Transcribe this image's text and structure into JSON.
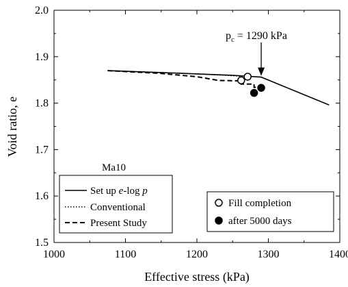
{
  "chart_data": {
    "type": "line",
    "xlabel": "Effective stress (kPa)",
    "ylabel": "Void ratio, e",
    "xlim": [
      1000,
      1400
    ],
    "ylim": [
      1.5,
      2.0
    ],
    "xticks": [
      "1000",
      "1100",
      "1200",
      "1300",
      "1400"
    ],
    "yticks": [
      "1.5",
      "1.6",
      "1.7",
      "1.8",
      "1.9",
      "2.0"
    ],
    "xtick_values": [
      1000,
      1100,
      1200,
      1300,
      1400
    ],
    "ytick_values": [
      1.5,
      1.6,
      1.7,
      1.8,
      1.9,
      2.0
    ],
    "series": [
      {
        "name": "Set up e-log p",
        "style": "solid",
        "x": [
          1075,
          1150,
          1200,
          1250,
          1290,
          1385
        ],
        "y": [
          1.87,
          1.866,
          1.863,
          1.86,
          1.856,
          1.796
        ]
      },
      {
        "name": "Conventional",
        "style": "dotted",
        "x": [
          1075,
          1150,
          1200,
          1250,
          1270
        ],
        "y": [
          1.87,
          1.866,
          1.863,
          1.859,
          1.857
        ]
      },
      {
        "name": "Present Study",
        "style": "dashed",
        "x": [
          1075,
          1150,
          1200,
          1230,
          1262,
          1262,
          1280,
          1280,
          1290
        ],
        "y": [
          1.87,
          1.864,
          1.857,
          1.849,
          1.848,
          1.841,
          1.841,
          1.834,
          1.834
        ]
      }
    ],
    "markers": [
      {
        "group": "fill",
        "filled": false,
        "x": 1262,
        "y": 1.849
      },
      {
        "group": "fill",
        "filled": false,
        "x": 1271,
        "y": 1.857
      },
      {
        "group": "after",
        "filled": true,
        "x": 1280,
        "y": 1.822
      },
      {
        "group": "after",
        "filled": true,
        "x": 1290,
        "y": 1.833
      }
    ],
    "annotation": {
      "x": 1290,
      "y": 1.856,
      "label_main": "p",
      "label_sub": "c",
      "label_rest": " = 1290 kPa"
    },
    "inset_label": "Ma10",
    "legend_lines": {
      "placement": "bottom-left",
      "items": [
        {
          "label_parts": [
            "Set up ",
            "e",
            "-log ",
            "p"
          ],
          "style": "solid"
        },
        {
          "label": "Conventional",
          "style": "dotted"
        },
        {
          "label": "Present Study",
          "style": "dashed"
        }
      ]
    },
    "legend_markers": {
      "placement": "bottom-right",
      "items": [
        {
          "label": "Fill completion",
          "filled": false
        },
        {
          "label": "after 5000 days",
          "filled": true
        }
      ]
    }
  }
}
